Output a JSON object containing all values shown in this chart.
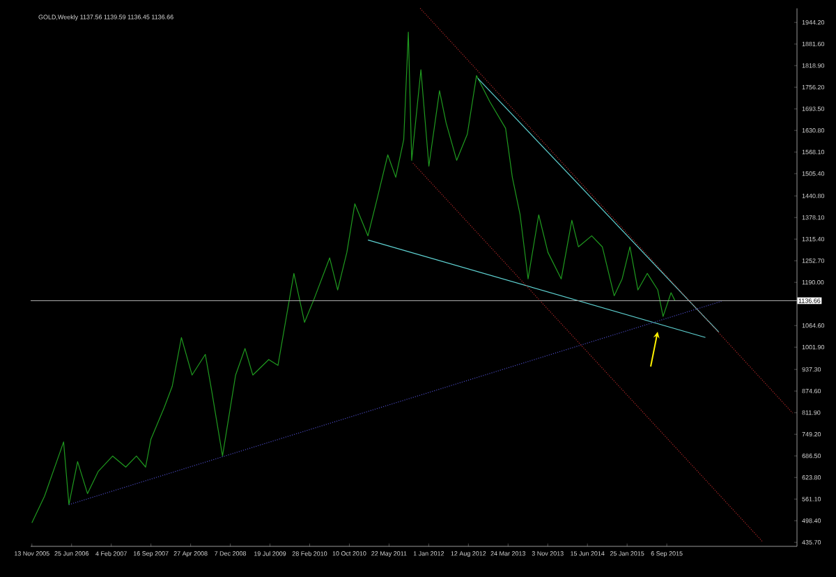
{
  "chart_data": {
    "type": "line",
    "title": "GOLD,Weekly  1137.56 1139.59 1136.45 1136.66",
    "series": [
      {
        "color": "#1f9a1f",
        "line_style": "solid",
        "x": [
          "2005-11-13",
          "2006-01-23",
          "2006-05-11",
          "2006-06-10",
          "2006-07-29",
          "2006-09-23",
          "2006-11-22",
          "2007-02-12",
          "2007-04-27",
          "2007-06-26",
          "2007-08-17",
          "2007-09-16",
          "2007-11-30",
          "2008-01-14",
          "2008-03-06",
          "2008-05-05",
          "2008-07-19",
          "2008-08-25",
          "2008-10-24",
          "2009-01-06",
          "2009-02-28",
          "2009-04-13",
          "2009-07-12",
          "2009-09-02",
          "2009-12-01",
          "2010-01-30",
          "2010-03-23",
          "2010-06-21",
          "2010-08-05",
          "2010-09-26",
          "2010-11-10",
          "2011-01-23",
          "2011-03-09",
          "2011-05-15",
          "2011-06-29",
          "2011-08-13",
          "2011-09-08",
          "2011-09-27",
          "2011-11-18",
          "2012-01-02",
          "2012-03-02",
          "2012-04-08",
          "2012-06-07",
          "2012-08-06",
          "2012-09-27",
          "2012-12-11",
          "2013-03-10",
          "2013-04-17",
          "2013-05-31",
          "2013-07-15",
          "2013-09-13",
          "2013-11-04",
          "2014-01-18",
          "2014-03-19",
          "2014-04-25",
          "2014-07-09",
          "2014-09-07",
          "2014-11-13",
          "2014-12-28",
          "2015-02-10",
          "2015-03-27",
          "2015-05-19",
          "2015-07-17",
          "2015-08-16",
          "2015-09-30",
          "2015-10-22"
        ],
        "values": [
          492,
          569,
          727,
          545,
          670,
          577,
          641,
          686,
          654,
          686,
          654,
          735,
          827,
          888,
          1030,
          921,
          981,
          872,
          686,
          921,
          998,
          921,
          966,
          949,
          1216,
          1074,
          1139,
          1261,
          1168,
          1277,
          1418,
          1325,
          1418,
          1560,
          1495,
          1604,
          1916,
          1544,
          1807,
          1527,
          1746,
          1653,
          1544,
          1620,
          1790,
          1714,
          1637,
          1495,
          1386,
          1200,
          1386,
          1277,
          1200,
          1370,
          1293,
          1325,
          1293,
          1151,
          1200,
          1293,
          1168,
          1216,
          1168,
          1091,
          1160,
          1137
        ]
      },
      {
        "color": "#5fd3d3",
        "line_style": "solid",
        "x": [
          "2012-10-04",
          "2016-06-25"
        ],
        "values": [
          1782,
          1046
        ]
      },
      {
        "color": "#5fd3d3",
        "line_style": "solid",
        "x": [
          "2011-01-23",
          "2016-04-11"
        ],
        "values": [
          1313,
          1030
        ]
      },
      {
        "color": "#4a4ac0",
        "line_style": "dotted",
        "x": [
          "2006-06-10",
          "2016-07-10"
        ],
        "values": [
          545,
          1135
        ]
      },
      {
        "color": "#b02828",
        "line_style": "dotted",
        "x": [
          "2011-11-14",
          "2017-08-16"
        ],
        "values": [
          1985,
          811
        ]
      },
      {
        "color": "#b02828",
        "line_style": "dotted",
        "x": [
          "2011-10-04",
          "2017-02-25"
        ],
        "values": [
          1536,
          439
        ]
      }
    ],
    "xlim": [
      "2005-11-06",
      "2017-09-10"
    ],
    "ylim": [
      424,
      1985
    ],
    "xticks": [
      {
        "value": "2005-11-13",
        "label": "13 Nov 2005"
      },
      {
        "value": "2006-06-25",
        "label": "25 Jun 2006"
      },
      {
        "value": "2007-02-04",
        "label": "4 Feb 2007"
      },
      {
        "value": "2007-09-16",
        "label": "16 Sep 2007"
      },
      {
        "value": "2008-04-27",
        "label": "27 Apr 2008"
      },
      {
        "value": "2008-12-07",
        "label": "7 Dec 2008"
      },
      {
        "value": "2009-07-19",
        "label": "19 Jul 2009"
      },
      {
        "value": "2010-02-28",
        "label": "28 Feb 2010"
      },
      {
        "value": "2010-10-10",
        "label": "10 Oct 2010"
      },
      {
        "value": "2011-05-22",
        "label": "22 May 2011"
      },
      {
        "value": "2012-01-01",
        "label": "1 Jan 2012"
      },
      {
        "value": "2012-08-12",
        "label": "12 Aug 2012"
      },
      {
        "value": "2013-03-24",
        "label": "24 Mar 2013"
      },
      {
        "value": "2013-11-03",
        "label": "3 Nov 2013"
      },
      {
        "value": "2014-06-15",
        "label": "15 Jun 2014"
      },
      {
        "value": "2015-01-25",
        "label": "25 Jan 2015"
      },
      {
        "value": "2015-09-06",
        "label": "6 Sep 2015"
      }
    ],
    "yticks": [
      {
        "value": 1944.2,
        "label": "1944.20"
      },
      {
        "value": 1881.6,
        "label": "1881.60"
      },
      {
        "value": 1818.9,
        "label": "1818.90"
      },
      {
        "value": 1756.2,
        "label": "1756.20"
      },
      {
        "value": 1693.5,
        "label": "1693.50"
      },
      {
        "value": 1630.8,
        "label": "1630.80"
      },
      {
        "value": 1568.1,
        "label": "1568.10"
      },
      {
        "value": 1505.4,
        "label": "1505.40"
      },
      {
        "value": 1440.8,
        "label": "1440.80"
      },
      {
        "value": 1378.1,
        "label": "1378.10"
      },
      {
        "value": 1315.4,
        "label": "1315.40"
      },
      {
        "value": 1252.7,
        "label": "1252.70"
      },
      {
        "value": 1190.0,
        "label": "1190.00"
      },
      {
        "value": 1064.6,
        "label": "1064.60"
      },
      {
        "value": 1001.9,
        "label": "1001.90"
      },
      {
        "value": 937.3,
        "label": "937.30"
      },
      {
        "value": 874.6,
        "label": "874.60"
      },
      {
        "value": 811.9,
        "label": "811.90"
      },
      {
        "value": 749.2,
        "label": "749.20"
      },
      {
        "value": 686.5,
        "label": "686.50"
      },
      {
        "value": 623.8,
        "label": "623.80"
      },
      {
        "value": 561.1,
        "label": "561.10"
      },
      {
        "value": 498.4,
        "label": "498.40"
      },
      {
        "value": 435.7,
        "label": "435.70"
      }
    ],
    "ref_lines": [
      {
        "axis": "y",
        "value": 1136.66,
        "label": "1136.66",
        "color": "#b0b0b0"
      }
    ],
    "grid": false,
    "marker": "none"
  }
}
